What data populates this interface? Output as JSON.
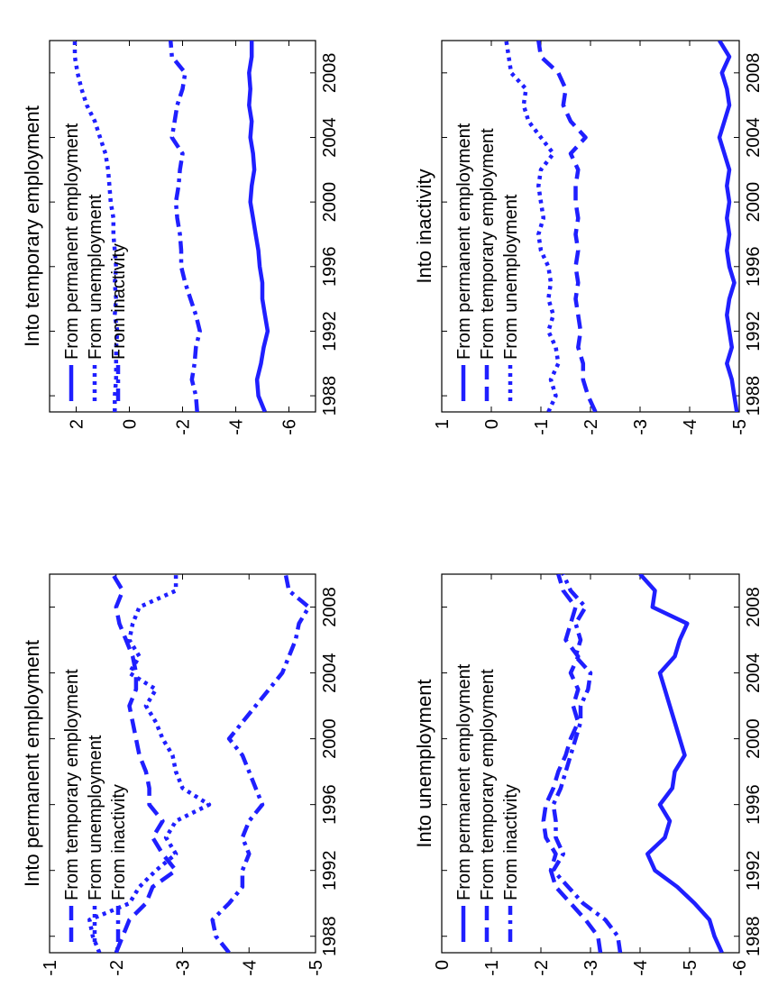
{
  "chart_data": [
    {
      "type": "line",
      "title": "Into permanent employment",
      "x": [
        1987,
        1988,
        1989,
        1990,
        1991,
        1992,
        1993,
        1994,
        1995,
        1996,
        1997,
        1998,
        1999,
        2000,
        2001,
        2002,
        2003,
        2004,
        2005,
        2006,
        2007,
        2008,
        2009,
        2010
      ],
      "xticks": [
        "1988",
        "1992",
        "1996",
        "2000",
        "2004",
        "2008"
      ],
      "yticks": [
        "-1",
        "-2",
        "-3",
        "-4",
        "-5"
      ],
      "ylim": [
        -5,
        -1
      ],
      "xlim": [
        1987,
        2010
      ],
      "legend_position": "top-left",
      "colors": {
        "line": "#1f1fff"
      },
      "series": [
        {
          "name": "From temporary employment",
          "style": "dashed",
          "values": [
            -2.0,
            -2.1,
            -2.2,
            -2.45,
            -2.55,
            -2.9,
            -2.7,
            -2.55,
            -2.7,
            -2.5,
            -2.5,
            -2.45,
            -2.35,
            -2.3,
            -2.25,
            -2.2,
            -2.3,
            -2.3,
            -2.25,
            -2.15,
            -2.05,
            -2.0,
            -2.1,
            -1.95
          ]
        },
        {
          "name": "From unemployment",
          "style": "dotted",
          "values": [
            -1.75,
            -1.65,
            -1.6,
            -2.2,
            -2.35,
            -2.6,
            -2.9,
            -2.75,
            -2.9,
            -3.4,
            -3.0,
            -2.9,
            -2.85,
            -2.7,
            -2.6,
            -2.45,
            -2.6,
            -2.2,
            -2.35,
            -2.2,
            -2.25,
            -2.35,
            -2.9,
            -2.9
          ]
        },
        {
          "name": "From inactivity",
          "style": "dash-dot",
          "values": [
            -3.7,
            -3.5,
            -3.45,
            -3.7,
            -3.9,
            -3.9,
            -4.0,
            -3.9,
            -4.0,
            -4.2,
            -4.1,
            -4.0,
            -3.9,
            -3.7,
            -3.9,
            -4.1,
            -4.3,
            -4.5,
            -4.6,
            -4.7,
            -4.75,
            -4.9,
            -4.6,
            -4.55
          ]
        }
      ]
    },
    {
      "type": "line",
      "title": "Into unemployment",
      "x": [
        1987,
        1988,
        1989,
        1990,
        1991,
        1992,
        1993,
        1994,
        1995,
        1996,
        1997,
        1998,
        1999,
        2000,
        2001,
        2002,
        2003,
        2004,
        2005,
        2006,
        2007,
        2008,
        2009,
        2010
      ],
      "xticks": [
        "1988",
        "1992",
        "1996",
        "2000",
        "2004",
        "2008"
      ],
      "yticks": [
        "0",
        "-1",
        "-2",
        "-3",
        "-4",
        "-5",
        "-6"
      ],
      "ylim": [
        -6,
        0
      ],
      "xlim": [
        1987,
        2010
      ],
      "legend_position": "top-left",
      "colors": {
        "line": "#1f1fff"
      },
      "series": [
        {
          "name": "From permanent employment",
          "style": "solid",
          "values": [
            -5.65,
            -5.5,
            -5.4,
            -5.1,
            -4.75,
            -4.3,
            -4.15,
            -4.5,
            -4.6,
            -4.4,
            -4.65,
            -4.7,
            -4.9,
            -4.8,
            -4.7,
            -4.6,
            -4.5,
            -4.4,
            -4.7,
            -4.8,
            -4.95,
            -4.25,
            -4.3,
            -4.0
          ]
        },
        {
          "name": "From temporary employment",
          "style": "dashed",
          "values": [
            -3.2,
            -3.15,
            -2.9,
            -2.6,
            -2.3,
            -2.2,
            -2.3,
            -2.1,
            -2.05,
            -2.1,
            -2.25,
            -2.35,
            -2.5,
            -2.6,
            -2.75,
            -2.65,
            -2.75,
            -2.6,
            -2.75,
            -2.5,
            -2.6,
            -2.7,
            -2.45,
            -2.35
          ]
        },
        {
          "name": "From inactivity",
          "style": "dash-dot",
          "values": [
            -3.6,
            -3.55,
            -3.3,
            -2.85,
            -2.55,
            -2.25,
            -2.45,
            -2.3,
            -2.3,
            -2.25,
            -2.4,
            -2.5,
            -2.6,
            -2.7,
            -2.8,
            -2.8,
            -2.95,
            -3.0,
            -2.7,
            -2.8,
            -2.7,
            -2.9,
            -2.6,
            -2.45
          ]
        }
      ]
    },
    {
      "type": "line",
      "title": "Into temporary employment",
      "x": [
        1987,
        1988,
        1989,
        1990,
        1991,
        1992,
        1993,
        1994,
        1995,
        1996,
        1997,
        1998,
        1999,
        2000,
        2001,
        2002,
        2003,
        2004,
        2005,
        2006,
        2007,
        2008,
        2009,
        2010
      ],
      "xticks": [
        "1988",
        "1992",
        "1996",
        "2000",
        "2004",
        "2008"
      ],
      "yticks": [
        "2",
        "0",
        "-2",
        "-4",
        "-6"
      ],
      "ylim": [
        -7,
        3
      ],
      "xlim": [
        1987,
        2010
      ],
      "legend_position": "top-left",
      "colors": {
        "line": "#1f1fff"
      },
      "series": [
        {
          "name": "From permanent employment",
          "style": "solid",
          "values": [
            -5.1,
            -4.85,
            -4.8,
            -4.95,
            -5.05,
            -5.2,
            -5.1,
            -5.0,
            -5.0,
            -4.9,
            -4.85,
            -4.75,
            -4.65,
            -4.55,
            -4.6,
            -4.7,
            -4.65,
            -4.55,
            -4.6,
            -4.5,
            -4.55,
            -4.5,
            -4.6,
            -4.6
          ]
        },
        {
          "name": "From unemployment",
          "style": "dotted",
          "values": [
            0.55,
            0.55,
            0.5,
            0.5,
            0.5,
            0.45,
            0.55,
            0.5,
            0.55,
            0.5,
            0.55,
            0.6,
            0.6,
            0.7,
            0.75,
            0.8,
            0.9,
            1.1,
            1.3,
            1.6,
            1.8,
            1.95,
            2.05,
            2.05
          ]
        },
        {
          "name": "From inactivity",
          "style": "dash-dot",
          "values": [
            -2.55,
            -2.5,
            -2.35,
            -2.45,
            -2.5,
            -2.65,
            -2.5,
            -2.3,
            -2.1,
            -1.95,
            -1.95,
            -1.9,
            -1.8,
            -1.75,
            -1.85,
            -1.9,
            -2.0,
            -1.6,
            -1.7,
            -1.8,
            -2.0,
            -2.1,
            -1.6,
            -1.55
          ]
        }
      ]
    },
    {
      "type": "line",
      "title": "Into inactivity",
      "x": [
        1987,
        1988,
        1989,
        1990,
        1991,
        1992,
        1993,
        1994,
        1995,
        1996,
        1997,
        1998,
        1999,
        2000,
        2001,
        2002,
        2003,
        2004,
        2005,
        2006,
        2007,
        2008,
        2009,
        2010
      ],
      "xticks": [
        "1988",
        "1992",
        "1996",
        "2000",
        "2004",
        "2008"
      ],
      "yticks": [
        "1",
        "0",
        "-1",
        "-2",
        "-3",
        "-4",
        "-5"
      ],
      "ylim": [
        -5,
        1
      ],
      "xlim": [
        1987,
        2010
      ],
      "legend_position": "top-left",
      "colors": {
        "line": "#1f1fff"
      },
      "series": [
        {
          "name": "From permanent employment",
          "style": "solid",
          "values": [
            -4.95,
            -4.9,
            -4.85,
            -4.75,
            -4.85,
            -4.8,
            -4.75,
            -4.8,
            -4.9,
            -4.8,
            -4.75,
            -4.8,
            -4.75,
            -4.8,
            -4.75,
            -4.8,
            -4.7,
            -4.6,
            -4.7,
            -4.8,
            -4.75,
            -4.65,
            -4.8,
            -4.6
          ]
        },
        {
          "name": "From temporary employment",
          "style": "dashed",
          "values": [
            -2.1,
            -1.95,
            -1.85,
            -1.85,
            -1.75,
            -1.8,
            -1.75,
            -1.7,
            -1.75,
            -1.7,
            -1.75,
            -1.7,
            -1.75,
            -1.7,
            -1.7,
            -1.75,
            -1.6,
            -1.9,
            -1.6,
            -1.45,
            -1.5,
            -1.35,
            -1.0,
            -0.95
          ]
        },
        {
          "name": "From unemployment",
          "style": "dotted",
          "values": [
            -1.15,
            -1.3,
            -1.2,
            -1.35,
            -1.3,
            -1.15,
            -1.25,
            -1.15,
            -1.2,
            -1.15,
            -1.0,
            -0.95,
            -1.05,
            -1.0,
            -0.95,
            -1.0,
            -1.25,
            -1.0,
            -0.75,
            -0.65,
            -0.7,
            -0.4,
            -0.35,
            -0.3
          ]
        }
      ]
    }
  ]
}
